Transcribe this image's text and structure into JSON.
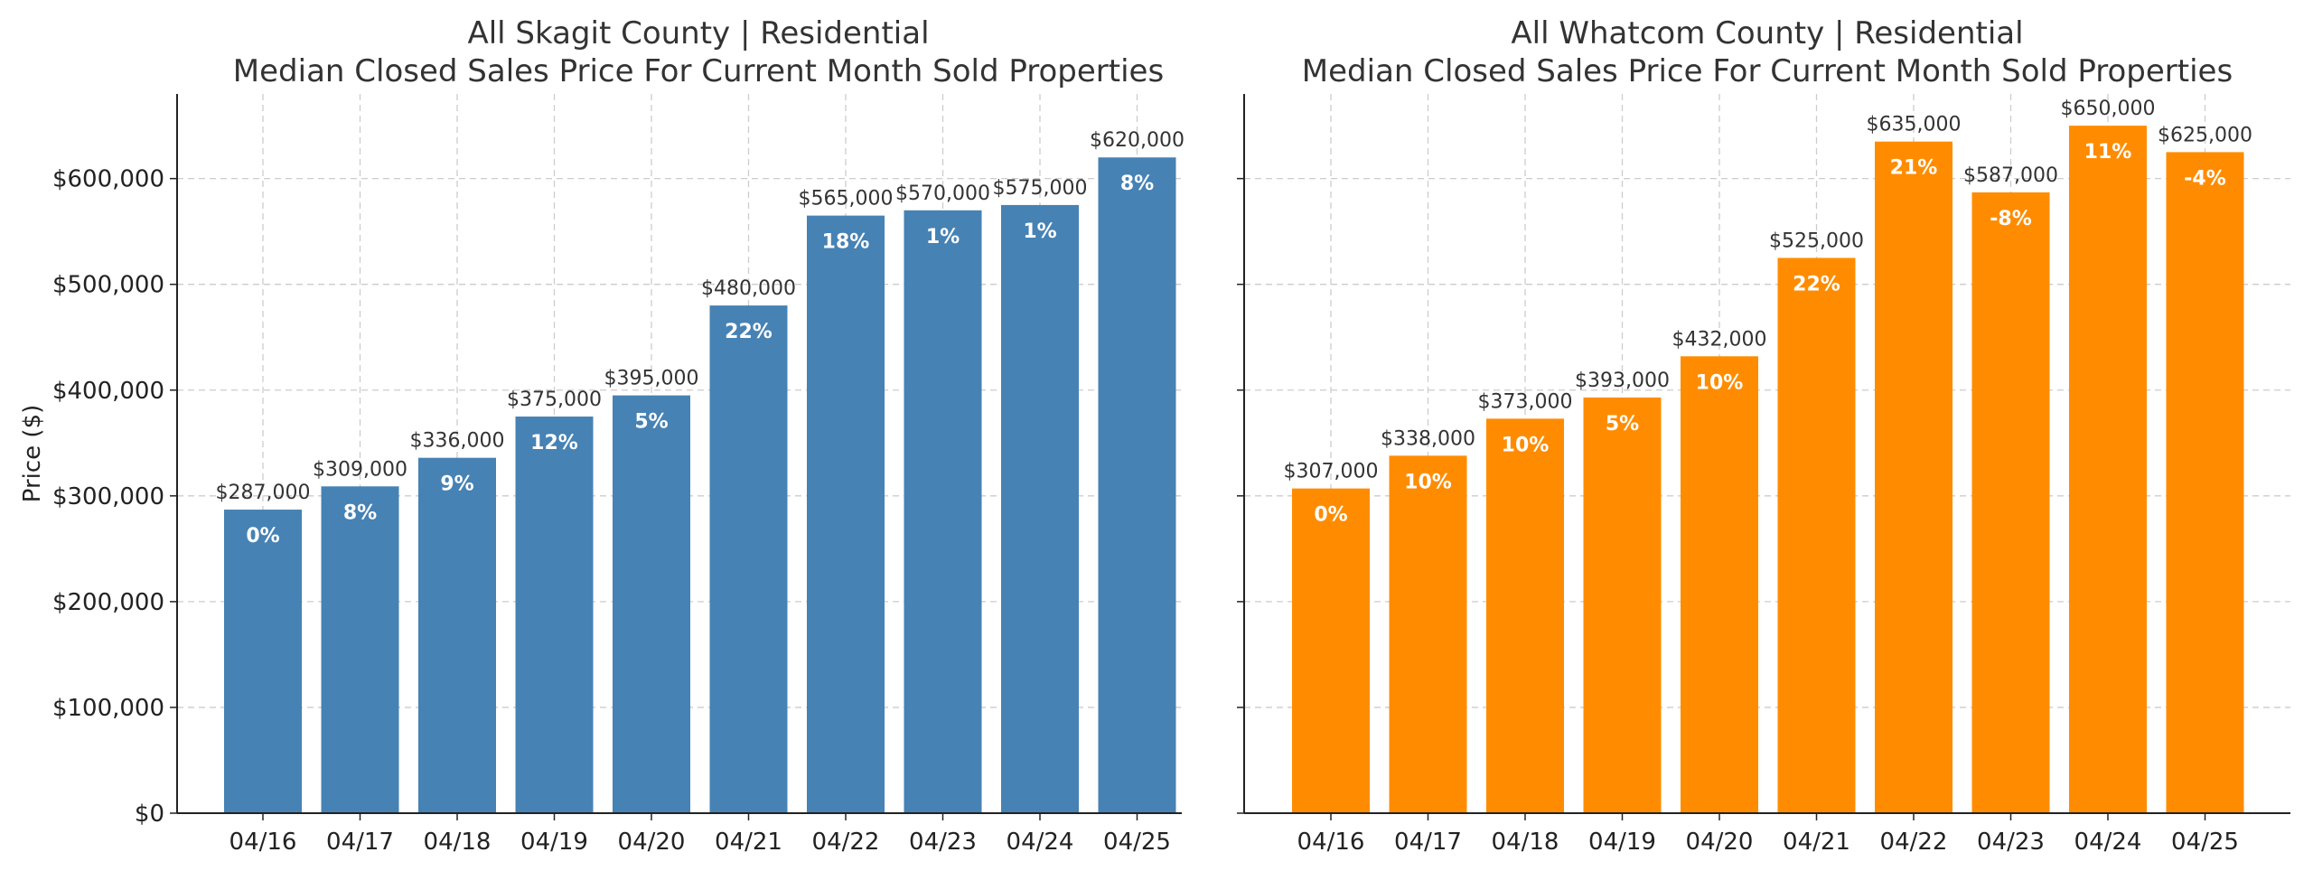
{
  "chart_data": [
    {
      "type": "bar",
      "title": "All Skagit County | Residential",
      "subtitle": "Median Closed Sales Price For Current Month Sold Properties",
      "ylabel": "Price ($)",
      "ylim": [
        0,
        680000
      ],
      "yticks": [
        0,
        100000,
        200000,
        300000,
        400000,
        500000,
        600000
      ],
      "ytick_labels": [
        "$0",
        "$100,000",
        "$200,000",
        "$300,000",
        "$400,000",
        "$500,000",
        "$600,000"
      ],
      "grid": true,
      "categories": [
        "04/16",
        "04/17",
        "04/18",
        "04/19",
        "04/20",
        "04/21",
        "04/22",
        "04/23",
        "04/24",
        "04/25"
      ],
      "values": [
        287000,
        309000,
        336000,
        375000,
        395000,
        480000,
        565000,
        570000,
        575000,
        620000
      ],
      "value_labels": [
        "$287,000",
        "$309,000",
        "$336,000",
        "$375,000",
        "$395,000",
        "$480,000",
        "$565,000",
        "$570,000",
        "$575,000",
        "$620,000"
      ],
      "change_labels": [
        "0%",
        "8%",
        "9%",
        "12%",
        "5%",
        "22%",
        "18%",
        "1%",
        "1%",
        "8%"
      ],
      "color": "#4682b4"
    },
    {
      "type": "bar",
      "title": "All Whatcom County | Residential",
      "subtitle": "Median Closed Sales Price For Current Month Sold Properties",
      "ylabel": "",
      "ylim": [
        0,
        680000
      ],
      "yticks": [
        0,
        100000,
        200000,
        300000,
        400000,
        500000,
        600000
      ],
      "ytick_labels": [],
      "grid": true,
      "categories": [
        "04/16",
        "04/17",
        "04/18",
        "04/19",
        "04/20",
        "04/21",
        "04/22",
        "04/23",
        "04/24",
        "04/25"
      ],
      "values": [
        307000,
        338000,
        373000,
        393000,
        432000,
        525000,
        635000,
        587000,
        650000,
        625000
      ],
      "value_labels": [
        "$307,000",
        "$338,000",
        "$373,000",
        "$393,000",
        "$432,000",
        "$525,000",
        "$635,000",
        "$587,000",
        "$650,000",
        "$625,000"
      ],
      "change_labels": [
        "0%",
        "10%",
        "10%",
        "5%",
        "10%",
        "22%",
        "21%",
        "-8%",
        "11%",
        "-4%"
      ],
      "color": "#ff8c00"
    }
  ]
}
